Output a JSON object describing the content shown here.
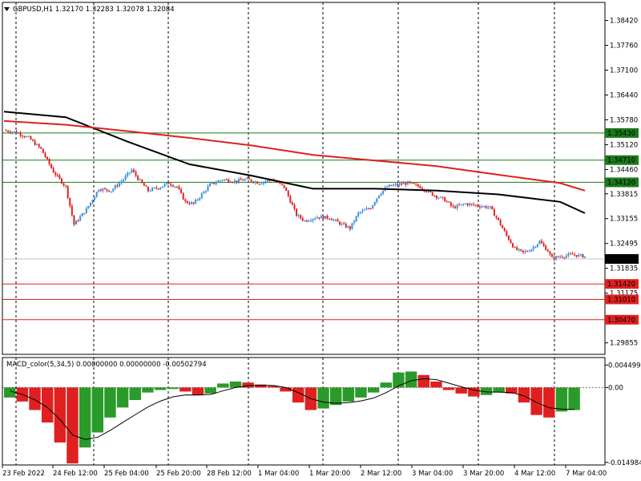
{
  "header": {
    "arrow_icon": "triangle-down-icon",
    "text": "GBPUSD,H1  1.32170 1.32283 1.32078 1.32084"
  },
  "macd_header": {
    "text": "MACD_color(5,34,5) 0.00000000 0.00000000 -0.00502794"
  },
  "colors": {
    "bull": "#3a8ee6",
    "bear": "#e02020",
    "ma_slow": "#e02020",
    "ma_fast": "#000000",
    "resistance_line": "#1a7a1a",
    "support_line": "#e02020",
    "macd_up": "#2a9a2a",
    "macd_down": "#e02020"
  },
  "chart_data": [
    {
      "type": "line",
      "title": "GBPUSD,H1",
      "subtitle": "1.32170 1.32283 1.32078 1.32084",
      "ylim": [
        1.2955,
        1.389
      ],
      "y_ticks": [
        "1.38420",
        "1.37760",
        "1.37100",
        "1.36440",
        "1.35780",
        "1.35120",
        "1.34460",
        "1.33815",
        "1.33155",
        "1.32495",
        "1.31835",
        "1.31175",
        "1.30515",
        "1.29855"
      ],
      "x_ticks": [
        "23 Feb 2022",
        "24 Feb 12:00",
        "25 Feb 04:00",
        "25 Feb 20:00",
        "28 Feb 12:00",
        "1 Mar 04:00",
        "1 Mar 20:00",
        "2 Mar 12:00",
        "3 Mar 04:00",
        "3 Mar 20:00",
        "4 Mar 12:00",
        "7 Mar 04:00"
      ],
      "current_price": "1.32084",
      "levels": [
        {
          "value": "1.35430",
          "kind": "resistance"
        },
        {
          "value": "1.34710",
          "kind": "resistance"
        },
        {
          "value": "1.34120",
          "kind": "resistance"
        },
        {
          "value": "1.31420",
          "kind": "support"
        },
        {
          "value": "1.31010",
          "kind": "support"
        },
        {
          "value": "1.30470",
          "kind": "support"
        }
      ],
      "close_series": [
        [
          0,
          1.355
        ],
        [
          6,
          1.3545
        ],
        [
          12,
          1.353
        ],
        [
          18,
          1.35
        ],
        [
          24,
          1.344
        ],
        [
          30,
          1.34
        ],
        [
          34,
          1.33
        ],
        [
          40,
          1.334
        ],
        [
          46,
          1.3395
        ],
        [
          52,
          1.339
        ],
        [
          58,
          1.342
        ],
        [
          62,
          1.3445
        ],
        [
          66,
          1.3415
        ],
        [
          70,
          1.339
        ],
        [
          76,
          1.34
        ],
        [
          80,
          1.341
        ],
        [
          84,
          1.34
        ],
        [
          88,
          1.336
        ],
        [
          92,
          1.3355
        ],
        [
          96,
          1.338
        ],
        [
          100,
          1.3405
        ],
        [
          106,
          1.342
        ],
        [
          112,
          1.3415
        ],
        [
          118,
          1.342
        ],
        [
          124,
          1.341
        ],
        [
          130,
          1.342
        ],
        [
          136,
          1.34
        ],
        [
          142,
          1.3325
        ],
        [
          146,
          1.331
        ],
        [
          152,
          1.332
        ],
        [
          158,
          1.3318
        ],
        [
          164,
          1.33
        ],
        [
          168,
          1.329
        ],
        [
          172,
          1.333
        ],
        [
          178,
          1.3345
        ],
        [
          182,
          1.338
        ],
        [
          186,
          1.34
        ],
        [
          190,
          1.3405
        ],
        [
          196,
          1.341
        ],
        [
          202,
          1.34
        ],
        [
          208,
          1.338
        ],
        [
          214,
          1.3365
        ],
        [
          218,
          1.3345
        ],
        [
          224,
          1.3355
        ],
        [
          230,
          1.335
        ],
        [
          236,
          1.3345
        ],
        [
          240,
          1.331
        ],
        [
          244,
          1.327
        ],
        [
          248,
          1.3235
        ],
        [
          252,
          1.3225
        ],
        [
          256,
          1.3235
        ],
        [
          260,
          1.3255
        ],
        [
          264,
          1.323
        ],
        [
          266,
          1.321
        ],
        [
          270,
          1.3215
        ],
        [
          276,
          1.322
        ],
        [
          282,
          1.3215
        ]
      ],
      "series": [
        {
          "values": [
            [
              0,
              1.36
            ],
            [
              30,
              1.3585
            ],
            [
              60,
              1.352
            ],
            [
              90,
              1.346
            ],
            [
              120,
              1.343
            ],
            [
              150,
              1.3395
            ],
            [
              180,
              1.3395
            ],
            [
              210,
              1.339
            ],
            [
              240,
              1.338
            ],
            [
              270,
              1.336
            ],
            [
              282,
              1.333
            ]
          ]
        },
        {
          "values": [
            [
              0,
              1.3575
            ],
            [
              30,
              1.3565
            ],
            [
              60,
              1.3548
            ],
            [
              90,
              1.353
            ],
            [
              120,
              1.351
            ],
            [
              150,
              1.3485
            ],
            [
              180,
              1.347
            ],
            [
              210,
              1.3455
            ],
            [
              240,
              1.3432
            ],
            [
              270,
              1.341
            ],
            [
              282,
              1.339
            ]
          ]
        }
      ]
    },
    {
      "type": "bar",
      "title": "MACD_color(5,34,5)",
      "ylim": [
        -0.0155,
        0.006
      ],
      "y_ticks": [
        "0.0044996",
        "0.00",
        "-0.0149846"
      ],
      "values": [
        -0.002,
        -0.0028,
        -0.0045,
        -0.007,
        -0.011,
        -0.0152,
        -0.012,
        -0.009,
        -0.006,
        -0.004,
        -0.0025,
        -0.001,
        -0.0005,
        -0.0003,
        -0.0008,
        -0.0015,
        -0.0012,
        0.0008,
        0.0012,
        0.001,
        0.0006,
        0.0003,
        -0.0008,
        -0.003,
        -0.0045,
        -0.0042,
        -0.0035,
        -0.0028,
        -0.002,
        -0.001,
        0.001,
        0.003,
        0.0032,
        0.0025,
        0.0012,
        -0.0005,
        -0.0012,
        -0.0018,
        -0.0015,
        -0.001,
        -0.0012,
        -0.003,
        -0.0055,
        -0.006,
        -0.0048,
        -0.0045
      ]
    }
  ]
}
